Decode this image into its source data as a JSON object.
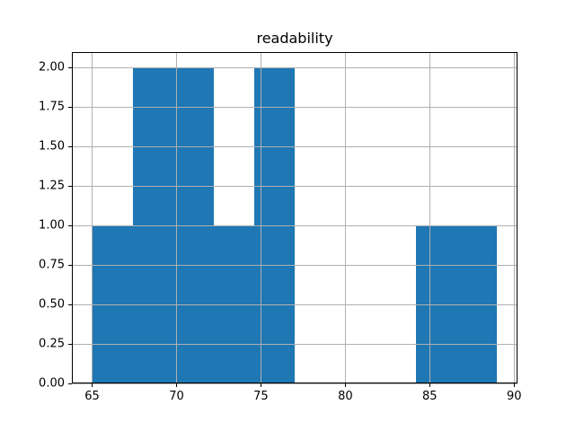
{
  "chart_data": {
    "type": "bar",
    "subtype": "histogram",
    "title": "readability",
    "bin_edges": [
      65,
      67.4,
      69.8,
      72.2,
      74.6,
      77,
      79.4,
      81.8,
      84.2,
      86.6,
      89
    ],
    "counts": [
      1,
      2,
      2,
      1,
      2,
      0,
      0,
      0,
      1,
      1
    ],
    "xticks": [
      65,
      70,
      75,
      80,
      85,
      90
    ],
    "xtick_labels": [
      "65",
      "70",
      "75",
      "80",
      "85",
      "90"
    ],
    "yticks": [
      0,
      0.25,
      0.5,
      0.75,
      1,
      1.25,
      1.5,
      1.75,
      2
    ],
    "ytick_labels": [
      "0.00",
      "0.25",
      "0.50",
      "0.75",
      "1.00",
      "1.25",
      "1.50",
      "1.75",
      "2.00"
    ],
    "xlim": [
      63.8,
      90.2
    ],
    "ylim": [
      0,
      2.1
    ],
    "xlabel": "",
    "ylabel": "",
    "grid": true,
    "legend": "none",
    "bar_color": "#1f77b4",
    "grid_color": "#b0b0b0",
    "spine_color": "#000000"
  }
}
